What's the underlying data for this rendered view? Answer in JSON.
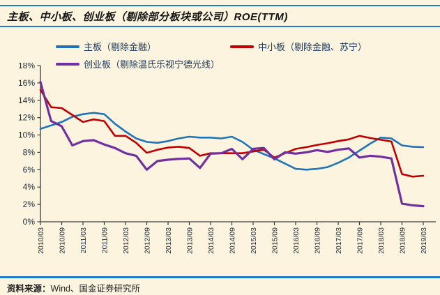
{
  "title": "主板、中小板、创业板（剔除部分板块或公司）ROE(TTM)",
  "footer": {
    "source_label": "资料来源：",
    "source_text": "Wind、国金证券研究所"
  },
  "colors": {
    "background": "#fcf4df",
    "rule_blue": "#1e7dc8",
    "axis": "#3a3a3a",
    "tick_text": "#1e2a38"
  },
  "chart_data": {
    "type": "line",
    "title": "主板、中小板、创业板（剔除部分板块或公司）ROE(TTM)",
    "ylabel": "",
    "xlabel": "",
    "ylim": [
      0,
      18
    ],
    "ytick_step": 2,
    "ytick_suffix": "%",
    "grid": false,
    "legend_position": "top-left",
    "x_tick_labels": [
      "2010/03",
      "2010/09",
      "2011/03",
      "2011/09",
      "2012/03",
      "2012/09",
      "2013/03",
      "2013/09",
      "2014/03",
      "2014/09",
      "2015/03",
      "2015/09",
      "2016/03",
      "2016/09",
      "2017/03",
      "2017/09",
      "2018/03",
      "2018/09",
      "2019/03"
    ],
    "categories": [
      "2010/03",
      "2010/06",
      "2010/09",
      "2010/12",
      "2011/03",
      "2011/06",
      "2011/09",
      "2011/12",
      "2012/03",
      "2012/06",
      "2012/09",
      "2012/12",
      "2013/03",
      "2013/06",
      "2013/09",
      "2013/12",
      "2014/03",
      "2014/06",
      "2014/09",
      "2014/12",
      "2015/03",
      "2015/06",
      "2015/09",
      "2015/12",
      "2016/03",
      "2016/06",
      "2016/09",
      "2016/12",
      "2017/03",
      "2017/06",
      "2017/09",
      "2017/12",
      "2018/03",
      "2018/06",
      "2018/09",
      "2018/12",
      "2019/03"
    ],
    "series": [
      {
        "name": "主板（剔除金融）",
        "color": "#1f74b8",
        "width": 2.6,
        "values": [
          10.7,
          11.1,
          11.5,
          12.1,
          12.4,
          12.55,
          12.4,
          11.3,
          10.4,
          9.6,
          9.2,
          9.1,
          9.3,
          9.6,
          9.8,
          9.7,
          9.7,
          9.6,
          9.8,
          9.2,
          8.3,
          7.8,
          7.3,
          6.7,
          6.1,
          6.0,
          6.1,
          6.3,
          6.8,
          7.4,
          8.2,
          9.0,
          9.7,
          9.6,
          8.8,
          8.65,
          8.6
        ]
      },
      {
        "name": "中小板（剔除金融、苏宁）",
        "color": "#c00000",
        "width": 2.6,
        "values": [
          15.2,
          13.2,
          13.1,
          12.3,
          11.5,
          11.8,
          11.6,
          9.9,
          9.9,
          9.1,
          7.95,
          8.3,
          8.55,
          8.65,
          8.5,
          7.6,
          7.9,
          7.9,
          7.9,
          7.9,
          8.1,
          8.3,
          7.4,
          7.9,
          8.4,
          8.6,
          8.85,
          9.05,
          9.3,
          9.5,
          9.9,
          9.65,
          9.45,
          9.25,
          5.5,
          5.2,
          5.3
        ]
      },
      {
        "name": "创业板（剔除温氏乐视宁德光线）",
        "color": "#7030a0",
        "width": 3.2,
        "values": [
          16.1,
          11.6,
          11.0,
          8.8,
          9.3,
          9.4,
          8.9,
          8.5,
          7.9,
          7.6,
          6.0,
          7.0,
          7.15,
          7.25,
          7.3,
          6.2,
          7.85,
          7.9,
          8.4,
          7.2,
          8.4,
          8.5,
          7.2,
          8.0,
          7.85,
          8.0,
          8.25,
          8.05,
          8.3,
          8.45,
          7.4,
          7.6,
          7.5,
          7.3,
          2.1,
          1.9,
          1.8
        ]
      }
    ]
  }
}
